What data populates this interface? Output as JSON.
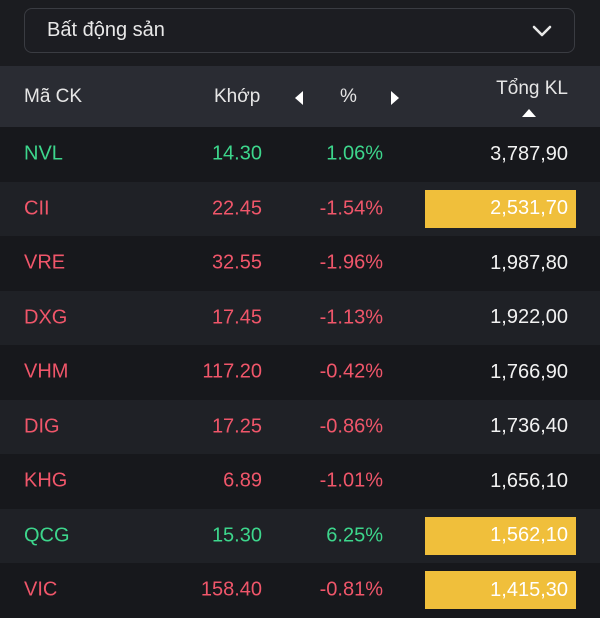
{
  "dropdown": {
    "selected": "Bất động sản",
    "icon": "chevron-down-icon"
  },
  "header": {
    "code": "Mã CK",
    "price": "Khớp",
    "percent": "%",
    "volume": "Tổng KL",
    "sort": "ascending"
  },
  "colors": {
    "up": "#3dd68c",
    "down": "#f0566a",
    "highlight": "#f0bf3b"
  },
  "rows": [
    {
      "code": "NVL",
      "price": "14.30",
      "pct": "1.06%",
      "volume": "3,787,90",
      "trend": "up",
      "highlight": false
    },
    {
      "code": "CII",
      "price": "22.45",
      "pct": "-1.54%",
      "volume": "2,531,70",
      "trend": "down",
      "highlight": true
    },
    {
      "code": "VRE",
      "price": "32.55",
      "pct": "-1.96%",
      "volume": "1,987,80",
      "trend": "down",
      "highlight": false
    },
    {
      "code": "DXG",
      "price": "17.45",
      "pct": "-1.13%",
      "volume": "1,922,00",
      "trend": "down",
      "highlight": false
    },
    {
      "code": "VHM",
      "price": "117.20",
      "pct": "-0.42%",
      "volume": "1,766,90",
      "trend": "down",
      "highlight": false
    },
    {
      "code": "DIG",
      "price": "17.25",
      "pct": "-0.86%",
      "volume": "1,736,40",
      "trend": "down",
      "highlight": false
    },
    {
      "code": "KHG",
      "price": "6.89",
      "pct": "-1.01%",
      "volume": "1,656,10",
      "trend": "down",
      "highlight": false
    },
    {
      "code": "QCG",
      "price": "15.30",
      "pct": "6.25%",
      "volume": "1,562,10",
      "trend": "up",
      "highlight": true
    },
    {
      "code": "VIC",
      "price": "158.40",
      "pct": "-0.81%",
      "volume": "1,415,30",
      "trend": "down",
      "highlight": true
    }
  ]
}
